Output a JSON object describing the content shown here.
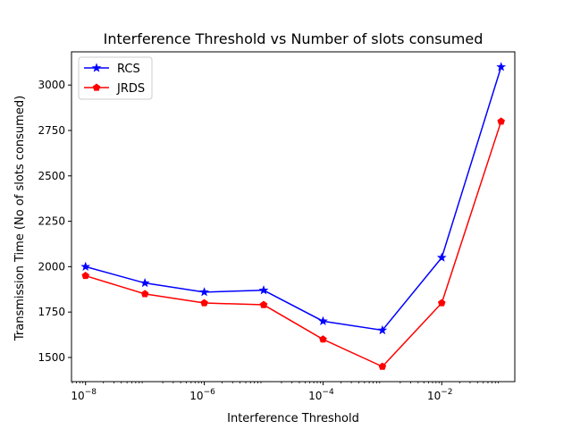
{
  "chart_data": {
    "type": "line",
    "title": "Interference Threshold vs Number of slots consumed",
    "xlabel": "Interference Threshold",
    "ylabel": "Transmission Time (No of slots consumed)",
    "x_scale": "log",
    "x": [
      1e-08,
      1e-07,
      1e-06,
      1e-05,
      0.0001,
      0.001,
      0.01,
      0.1
    ],
    "x_ticks": [
      {
        "value": 1e-08,
        "base": "10",
        "exp": "−8"
      },
      {
        "value": 1e-06,
        "base": "10",
        "exp": "−6"
      },
      {
        "value": 0.0001,
        "base": "10",
        "exp": "−4"
      },
      {
        "value": 0.01,
        "base": "10",
        "exp": "−2"
      }
    ],
    "xlim": [
      5.8e-09,
      0.17
    ],
    "ylim": [
      1367,
      3183
    ],
    "y_ticks": [
      1500,
      1750,
      2000,
      2250,
      2500,
      2750,
      3000
    ],
    "grid": false,
    "legend_position": "top-left",
    "series": [
      {
        "name": "RCS",
        "color": "#0000ff",
        "marker": "star",
        "values": [
          2000,
          1910,
          1860,
          1870,
          1700,
          1650,
          2050,
          3100
        ]
      },
      {
        "name": "JRDS",
        "color": "#ff0000",
        "marker": "pentagon",
        "values": [
          1950,
          1850,
          1800,
          1790,
          1600,
          1450,
          1800,
          2800
        ]
      }
    ]
  }
}
